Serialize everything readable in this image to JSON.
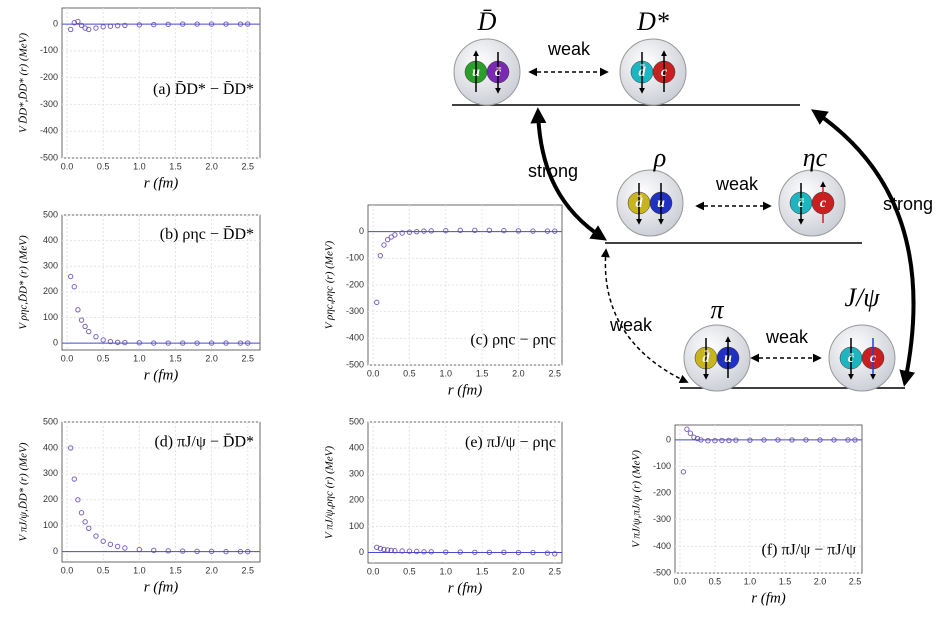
{
  "chart_data": [
    {
      "type": "scatter",
      "title": "(a) D̄D* − D̄D*",
      "y_label": "V D̄D*,D̄D* (r)  (MeV)",
      "x_label": "r   (fm)",
      "x": [
        0.05,
        0.1,
        0.15,
        0.2,
        0.25,
        0.3,
        0.4,
        0.5,
        0.6,
        0.7,
        0.8,
        1.0,
        1.2,
        1.4,
        1.6,
        1.8,
        2.0,
        2.2,
        2.4,
        2.5
      ],
      "values": [
        -20,
        5,
        10,
        -5,
        -15,
        -20,
        -15,
        -10,
        -8,
        -6,
        -5,
        -3,
        -2,
        -1,
        0,
        0,
        0,
        0,
        0,
        0
      ],
      "color": "#5b3fb0",
      "xlim": [
        -0.07,
        2.67
      ],
      "ylim": [
        -500,
        60
      ],
      "xticks": [
        {
          "value": 0,
          "label": "0.0"
        },
        {
          "value": 0.5,
          "label": "0.5"
        },
        {
          "value": 1,
          "label": "1.0"
        },
        {
          "value": 1.5,
          "label": "1.5"
        },
        {
          "value": 2,
          "label": "2.0"
        },
        {
          "value": 2.5,
          "label": "2.5"
        }
      ],
      "yticks": [
        -500,
        -400,
        -300,
        -200,
        -100,
        0
      ]
    },
    {
      "type": "scatter",
      "title": "(b) ρηc − D̄D*",
      "y_label": "V ρηc,D̄D* (r)  (MeV)",
      "x_label": "r   (fm)",
      "x": [
        0.05,
        0.1,
        0.15,
        0.2,
        0.25,
        0.3,
        0.4,
        0.5,
        0.6,
        0.7,
        0.8,
        1.0,
        1.2,
        1.4,
        1.6,
        1.8,
        2.0,
        2.2,
        2.4,
        2.5
      ],
      "values": [
        260,
        220,
        130,
        90,
        65,
        45,
        25,
        12,
        6,
        3,
        2,
        1,
        0,
        0,
        0,
        0,
        0,
        0,
        0,
        0
      ],
      "color": "#5b3fb0",
      "xlim": [
        -0.07,
        2.67
      ],
      "ylim": [
        -27,
        500
      ],
      "xticks": [
        {
          "value": 0,
          "label": "0.0"
        },
        {
          "value": 0.5,
          "label": "0.5"
        },
        {
          "value": 1,
          "label": "1.0"
        },
        {
          "value": 1.5,
          "label": "1.5"
        },
        {
          "value": 2,
          "label": "2.0"
        },
        {
          "value": 2.5,
          "label": "2.5"
        }
      ],
      "yticks": [
        0,
        100,
        200,
        300,
        400,
        500
      ]
    },
    {
      "type": "scatter",
      "title": "(c) ρηc − ρηc",
      "y_label": "V ρηc,ρηc (r)  (MeV)",
      "x_label": "r   (fm)",
      "x": [
        0.05,
        0.1,
        0.15,
        0.2,
        0.25,
        0.3,
        0.4,
        0.5,
        0.6,
        0.7,
        0.8,
        1.0,
        1.2,
        1.4,
        1.6,
        1.8,
        2.0,
        2.2,
        2.4,
        2.5
      ],
      "values": [
        -265,
        -90,
        -50,
        -30,
        -20,
        -12,
        -5,
        -2,
        0,
        2,
        3,
        4,
        5,
        5,
        5,
        4,
        3,
        2,
        2,
        2
      ],
      "color": "#5b3fb0",
      "xlim": [
        -0.07,
        2.6
      ],
      "ylim": [
        -500,
        100
      ],
      "xticks": [
        {
          "value": 0,
          "label": "0.0"
        },
        {
          "value": 0.5,
          "label": "0.5"
        },
        {
          "value": 1,
          "label": "1.0"
        },
        {
          "value": 1.5,
          "label": "1.5"
        },
        {
          "value": 2,
          "label": "2.0"
        },
        {
          "value": 2.5,
          "label": "2.5"
        }
      ],
      "yticks": [
        -500,
        -400,
        -300,
        -200,
        -100,
        0
      ]
    },
    {
      "type": "scatter",
      "title": "(d) πJ/ψ − D̄D*",
      "y_label": "V πJ/ψ,D̄D* (r)  (MeV)",
      "x_label": "r   (fm)",
      "x": [
        0.05,
        0.1,
        0.15,
        0.2,
        0.25,
        0.3,
        0.4,
        0.5,
        0.6,
        0.7,
        0.8,
        1.0,
        1.2,
        1.4,
        1.6,
        1.8,
        2.0,
        2.2,
        2.4,
        2.5
      ],
      "values": [
        400,
        280,
        200,
        150,
        115,
        90,
        60,
        40,
        28,
        20,
        14,
        8,
        5,
        3,
        2,
        1,
        1,
        0,
        0,
        0
      ],
      "color": "#5b3fb0",
      "xlim": [
        -0.07,
        2.67
      ],
      "ylim": [
        -40,
        500
      ],
      "xticks": [
        {
          "value": 0,
          "label": "0.0"
        },
        {
          "value": 0.5,
          "label": "0.5"
        },
        {
          "value": 1,
          "label": "1.0"
        },
        {
          "value": 1.5,
          "label": "1.5"
        },
        {
          "value": 2,
          "label": "2.0"
        },
        {
          "value": 2.5,
          "label": "2.5"
        }
      ],
      "yticks": [
        0,
        100,
        200,
        300,
        400,
        500
      ]
    },
    {
      "type": "scatter",
      "title": "(e) πJ/ψ − ρηc",
      "y_label": "V πJ/ψ,ρηc (r)  (MeV)",
      "x_label": "r   (fm)",
      "x": [
        0.05,
        0.1,
        0.15,
        0.2,
        0.25,
        0.3,
        0.4,
        0.5,
        0.6,
        0.7,
        0.8,
        1.0,
        1.2,
        1.4,
        1.6,
        1.8,
        2.0,
        2.2,
        2.4,
        2.5
      ],
      "values": [
        20,
        15,
        12,
        10,
        8,
        7,
        6,
        5,
        4,
        3,
        3,
        2,
        2,
        1,
        1,
        1,
        0,
        0,
        -2,
        -5
      ],
      "color": "#5b3fb0",
      "xlim": [
        -0.07,
        2.6
      ],
      "ylim": [
        -40,
        500
      ],
      "xticks": [
        {
          "value": 0,
          "label": "0.0"
        },
        {
          "value": 0.5,
          "label": "0.5"
        },
        {
          "value": 1,
          "label": "1.0"
        },
        {
          "value": 1.5,
          "label": "1.5"
        },
        {
          "value": 2,
          "label": "2.0"
        },
        {
          "value": 2.5,
          "label": "2.5"
        }
      ],
      "yticks": [
        0,
        100,
        200,
        300,
        400,
        500
      ]
    },
    {
      "type": "scatter",
      "title": "(f) πJ/ψ − πJ/ψ",
      "y_label": "V πJ/ψ,πJ/ψ (r)  (MeV)",
      "x_label": "r   (fm)",
      "x": [
        0.05,
        0.1,
        0.15,
        0.2,
        0.25,
        0.3,
        0.4,
        0.5,
        0.6,
        0.7,
        0.8,
        1.0,
        1.2,
        1.4,
        1.6,
        1.8,
        2.0,
        2.2,
        2.4,
        2.5
      ],
      "values": [
        -120,
        40,
        25,
        10,
        5,
        0,
        -3,
        -3,
        -2,
        -2,
        -1,
        -1,
        0,
        0,
        0,
        0,
        0,
        0,
        0,
        0
      ],
      "color": "#5b3fb0",
      "xlim": [
        -0.07,
        2.6
      ],
      "ylim": [
        -500,
        56
      ],
      "xticks": [
        {
          "value": 0,
          "label": "0.0"
        },
        {
          "value": 0.5,
          "label": "0.5"
        },
        {
          "value": 1,
          "label": "1.0"
        },
        {
          "value": 1.5,
          "label": "1.5"
        },
        {
          "value": 2,
          "label": "2.0"
        },
        {
          "value": 2.5,
          "label": "2.5"
        }
      ],
      "yticks": [
        -500,
        -400,
        -300,
        -200,
        -100,
        0
      ]
    }
  ],
  "diagram": {
    "hadrons": [
      {
        "name": "D̄",
        "quarks": [
          "u",
          "c̄"
        ]
      },
      {
        "name": "D*",
        "quarks": [
          "d̄",
          "c"
        ]
      },
      {
        "name": "ρ",
        "quarks": [
          "d̄",
          "u"
        ]
      },
      {
        "name": "ηc",
        "quarks": [
          "c̄",
          "c"
        ]
      },
      {
        "name": "π",
        "quarks": [
          "d̄",
          "u"
        ]
      },
      {
        "name": "J/ψ",
        "quarks": [
          "c̄",
          "c"
        ]
      }
    ],
    "couplings": [
      "weak",
      "weak",
      "weak",
      "weak",
      "strong",
      "strong"
    ]
  }
}
